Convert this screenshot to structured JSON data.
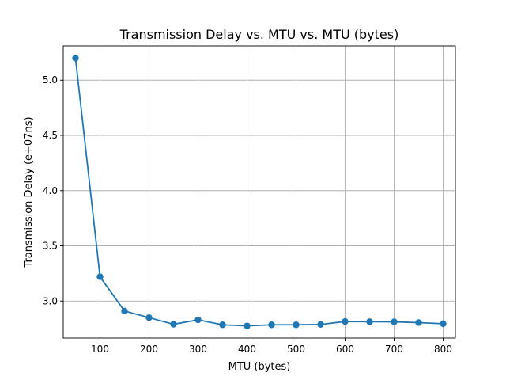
{
  "chart_data": {
    "type": "line",
    "title": "Transmission Delay vs. MTU vs. MTU (bytes)",
    "xlabel": "MTU (bytes)",
    "ylabel": "Transmission Delay (e+07ns)",
    "x": [
      50,
      100,
      150,
      200,
      250,
      300,
      350,
      400,
      450,
      500,
      550,
      600,
      650,
      700,
      750,
      800
    ],
    "series": [
      {
        "values": [
          5.2,
          3.22,
          2.91,
          2.85,
          2.79,
          2.83,
          2.785,
          2.775,
          2.785,
          2.785,
          2.788,
          2.815,
          2.813,
          2.812,
          2.805,
          2.795
        ]
      }
    ],
    "xlim": [
      25,
      825
    ],
    "ylim": [
      2.665,
      5.31
    ],
    "xticks": [
      100,
      200,
      300,
      400,
      500,
      600,
      700,
      800
    ],
    "yticks": [
      3.0,
      3.5,
      4.0,
      4.5,
      5.0
    ],
    "grid": true,
    "line_color": "#1f77b4"
  }
}
